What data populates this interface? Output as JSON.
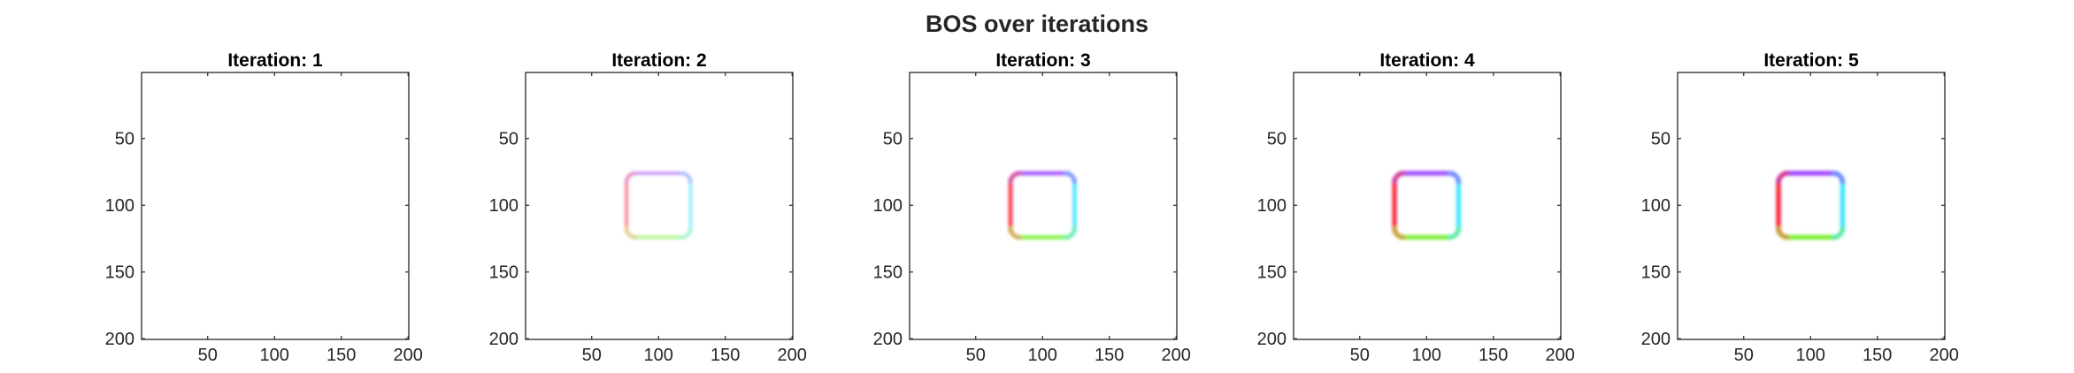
{
  "figure": {
    "title": "BOS over iterations",
    "background": "#ffffff"
  },
  "chart_data": {
    "type": "heatmap",
    "image_size": [
      200,
      200
    ],
    "xticks": [
      50,
      100,
      150,
      200
    ],
    "yticks": [
      50,
      100,
      150,
      200
    ],
    "xlim": [
      0.5,
      200.5
    ],
    "ylim": [
      0.5,
      200.5
    ],
    "y_direction": "reversed",
    "edge_colors": {
      "top": "#a04aff",
      "right": "#3fe6ff",
      "bottom": "#7cf03a",
      "left": "#ff2a3c"
    },
    "square": {
      "x_range": [
        76,
        124
      ],
      "y_range": [
        76,
        124
      ],
      "corner_radius": 8
    },
    "panels": [
      {
        "title": "Iteration: 1",
        "iteration": 1,
        "intensity": 0.0,
        "thickness": 0
      },
      {
        "title": "Iteration: 2",
        "iteration": 2,
        "intensity": 0.55,
        "thickness": 4
      },
      {
        "title": "Iteration: 3",
        "iteration": 3,
        "intensity": 0.85,
        "thickness": 5
      },
      {
        "title": "Iteration: 4",
        "iteration": 4,
        "intensity": 0.95,
        "thickness": 5.5
      },
      {
        "title": "Iteration: 5",
        "iteration": 5,
        "intensity": 1.0,
        "thickness": 5.5
      }
    ]
  }
}
